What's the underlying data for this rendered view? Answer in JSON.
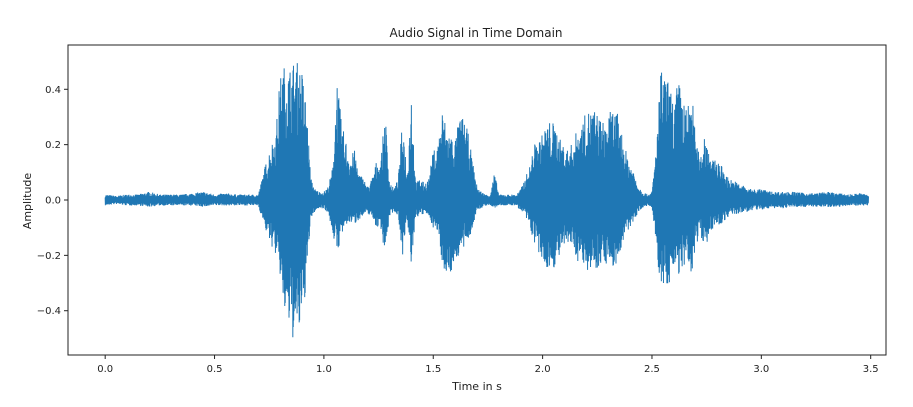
{
  "chart_data": {
    "type": "line",
    "title": "Audio Signal in Time Domain",
    "xlabel": "Time in s",
    "ylabel": "Amplitude",
    "xlim": [
      -0.17,
      3.57
    ],
    "ylim": [
      -0.56,
      0.56
    ],
    "xticks": [
      0.0,
      0.5,
      1.0,
      1.5,
      2.0,
      2.5,
      3.0,
      3.5
    ],
    "xtick_labels": [
      "0.0",
      "0.5",
      "1.0",
      "1.5",
      "2.0",
      "2.5",
      "3.0",
      "3.5"
    ],
    "yticks": [
      0.4,
      0.2,
      0.0,
      -0.2,
      -0.4
    ],
    "ytick_labels": [
      "0.4",
      "0.2",
      "0.0",
      "−0.2",
      "−0.4"
    ],
    "grid": false,
    "line_color": "#1f77b4",
    "series": [
      {
        "x": [
          0.0,
          0.05,
          0.1,
          0.15,
          0.2,
          0.25,
          0.3,
          0.35,
          0.4,
          0.45,
          0.5,
          0.55,
          0.6,
          0.65,
          0.7,
          0.73,
          0.75,
          0.78,
          0.8,
          0.82,
          0.84,
          0.86,
          0.88,
          0.9,
          0.92,
          0.94,
          0.96,
          0.98,
          1.0,
          1.02,
          1.04,
          1.06,
          1.08,
          1.1,
          1.12,
          1.14,
          1.16,
          1.18,
          1.2,
          1.22,
          1.24,
          1.26,
          1.28,
          1.3,
          1.32,
          1.34,
          1.36,
          1.38,
          1.4,
          1.42,
          1.44,
          1.46,
          1.48,
          1.5,
          1.52,
          1.54,
          1.56,
          1.58,
          1.6,
          1.62,
          1.64,
          1.66,
          1.68,
          1.7,
          1.72,
          1.74,
          1.76,
          1.78,
          1.8,
          1.82,
          1.84,
          1.86,
          1.88,
          1.9,
          1.92,
          1.94,
          1.96,
          1.98,
          2.0,
          2.02,
          2.04,
          2.06,
          2.08,
          2.1,
          2.12,
          2.14,
          2.16,
          2.18,
          2.2,
          2.22,
          2.24,
          2.26,
          2.28,
          2.3,
          2.32,
          2.34,
          2.36,
          2.38,
          2.4,
          2.42,
          2.44,
          2.46,
          2.48,
          2.5,
          2.52,
          2.54,
          2.56,
          2.58,
          2.6,
          2.62,
          2.64,
          2.66,
          2.68,
          2.7,
          2.72,
          2.74,
          2.76,
          2.78,
          2.8,
          2.85,
          2.9,
          2.95,
          3.0,
          3.05,
          3.1,
          3.15,
          3.2,
          3.25,
          3.3,
          3.35,
          3.4,
          3.45,
          3.49
        ],
        "upper": [
          0.02,
          0.015,
          0.02,
          0.02,
          0.03,
          0.02,
          0.02,
          0.02,
          0.025,
          0.03,
          0.02,
          0.025,
          0.02,
          0.02,
          0.02,
          0.12,
          0.18,
          0.25,
          0.45,
          0.49,
          0.48,
          0.5,
          0.5,
          0.47,
          0.35,
          0.08,
          0.04,
          0.03,
          0.03,
          0.05,
          0.12,
          0.45,
          0.28,
          0.22,
          0.16,
          0.18,
          0.1,
          0.08,
          0.05,
          0.08,
          0.14,
          0.14,
          0.32,
          0.07,
          0.04,
          0.08,
          0.3,
          0.1,
          0.4,
          0.06,
          0.08,
          0.06,
          0.08,
          0.18,
          0.2,
          0.33,
          0.27,
          0.24,
          0.22,
          0.3,
          0.3,
          0.24,
          0.14,
          0.05,
          0.03,
          0.02,
          0.02,
          0.1,
          0.02,
          0.02,
          0.02,
          0.02,
          0.02,
          0.04,
          0.08,
          0.12,
          0.2,
          0.22,
          0.24,
          0.28,
          0.29,
          0.27,
          0.22,
          0.2,
          0.18,
          0.22,
          0.26,
          0.28,
          0.32,
          0.33,
          0.33,
          0.3,
          0.28,
          0.31,
          0.33,
          0.32,
          0.25,
          0.18,
          0.14,
          0.1,
          0.05,
          0.03,
          0.02,
          0.03,
          0.2,
          0.47,
          0.45,
          0.42,
          0.35,
          0.44,
          0.38,
          0.32,
          0.42,
          0.22,
          0.15,
          0.25,
          0.2,
          0.14,
          0.15,
          0.08,
          0.06,
          0.04,
          0.04,
          0.03,
          0.03,
          0.03,
          0.025,
          0.025,
          0.03,
          0.025,
          0.02,
          0.025,
          0.02
        ],
        "lower": [
          -0.02,
          -0.015,
          -0.02,
          -0.02,
          -0.025,
          -0.02,
          -0.02,
          -0.02,
          -0.02,
          -0.025,
          -0.02,
          -0.02,
          -0.02,
          -0.02,
          -0.02,
          -0.1,
          -0.15,
          -0.2,
          -0.28,
          -0.42,
          -0.46,
          -0.51,
          -0.5,
          -0.45,
          -0.3,
          -0.07,
          -0.04,
          -0.03,
          -0.03,
          -0.05,
          -0.12,
          -0.2,
          -0.13,
          -0.1,
          -0.08,
          -0.09,
          -0.07,
          -0.06,
          -0.05,
          -0.06,
          -0.1,
          -0.1,
          -0.2,
          -0.06,
          -0.04,
          -0.06,
          -0.2,
          -0.08,
          -0.24,
          -0.06,
          -0.06,
          -0.05,
          -0.06,
          -0.1,
          -0.12,
          -0.22,
          -0.28,
          -0.27,
          -0.22,
          -0.2,
          -0.18,
          -0.15,
          -0.1,
          -0.04,
          -0.03,
          -0.02,
          -0.02,
          -0.03,
          -0.02,
          -0.02,
          -0.02,
          -0.02,
          -0.02,
          -0.04,
          -0.06,
          -0.1,
          -0.15,
          -0.2,
          -0.23,
          -0.25,
          -0.25,
          -0.24,
          -0.2,
          -0.18,
          -0.16,
          -0.18,
          -0.22,
          -0.24,
          -0.25,
          -0.26,
          -0.25,
          -0.24,
          -0.22,
          -0.24,
          -0.25,
          -0.23,
          -0.18,
          -0.13,
          -0.1,
          -0.07,
          -0.04,
          -0.03,
          -0.02,
          -0.03,
          -0.18,
          -0.33,
          -0.32,
          -0.3,
          -0.28,
          -0.27,
          -0.26,
          -0.25,
          -0.28,
          -0.17,
          -0.12,
          -0.17,
          -0.14,
          -0.1,
          -0.1,
          -0.06,
          -0.05,
          -0.04,
          -0.035,
          -0.03,
          -0.03,
          -0.025,
          -0.025,
          -0.025,
          -0.025,
          -0.025,
          -0.02,
          -0.02,
          -0.02
        ]
      }
    ]
  }
}
